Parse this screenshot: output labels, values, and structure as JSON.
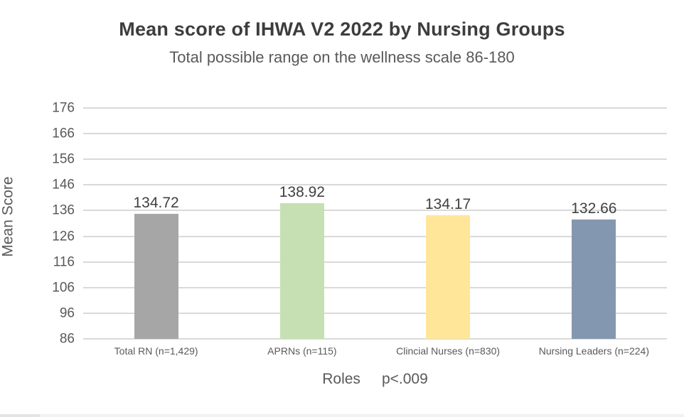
{
  "chart_data": {
    "type": "bar",
    "title": "Mean score of IHWA V2 2022 by Nursing Groups",
    "subtitle": "Total possible range on the wellness scale 86-180",
    "categories": [
      "Total RN (n=1,429)",
      "APRNs (n=115)",
      "Clincial Nurses (n=830)",
      "Nursing Leaders (n=224)"
    ],
    "values": [
      134.72,
      138.92,
      134.17,
      132.66
    ],
    "data_labels": [
      "134.72",
      "138.92",
      "134.17",
      "132.66"
    ],
    "bar_colors": [
      "#a6a6a6",
      "#c6e0b4",
      "#ffe699",
      "#8497b0"
    ],
    "xlabel": "Roles",
    "p_value_annotation": "p<.009",
    "ylabel": "Mean Score",
    "yticks": [
      86,
      96,
      106,
      116,
      126,
      136,
      146,
      156,
      166,
      176
    ],
    "ylim": [
      86,
      176
    ],
    "grid": true,
    "gridline_color": "#d9d9d9",
    "legend": "none",
    "background_color": "#ffffff"
  }
}
